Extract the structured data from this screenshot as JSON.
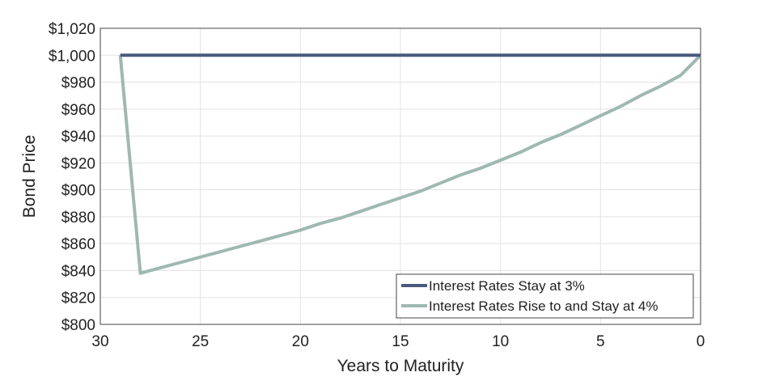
{
  "chart_data": {
    "type": "line",
    "xlabel": "Years to Maturity",
    "ylabel": "Bond Price",
    "xlim": [
      30,
      0
    ],
    "x_reversed": true,
    "ylim": [
      800,
      1020
    ],
    "x_ticks": [
      30,
      25,
      20,
      15,
      10,
      5,
      0
    ],
    "x_tick_labels": [
      "30",
      "25",
      "20",
      "15",
      "10",
      "5",
      "0"
    ],
    "y_ticks": [
      800,
      820,
      840,
      860,
      880,
      900,
      920,
      940,
      960,
      980,
      1000,
      1020
    ],
    "y_tick_labels": [
      "$800",
      "$820",
      "$840",
      "$860",
      "$880",
      "$900",
      "$920",
      "$940",
      "$960",
      "$980",
      "$1,000",
      "$1,020"
    ],
    "grid": true,
    "legend_position": "bottom-right",
    "series": [
      {
        "name": "Interest Rates Stay at 3%",
        "color": "#4a5a7e",
        "x": [
          29,
          0
        ],
        "y": [
          1000,
          1000
        ]
      },
      {
        "name": "Interest Rates Rise to and Stay at 4%",
        "color": "#9fb8b2",
        "x": [
          29,
          28,
          27,
          26,
          25,
          24,
          23,
          22,
          21,
          20,
          19,
          18,
          17,
          16,
          15,
          14,
          13,
          12,
          11,
          10,
          9,
          8,
          7,
          6,
          5,
          4,
          3,
          2,
          1,
          0
        ],
        "y": [
          1000,
          838,
          842,
          846,
          850,
          854,
          858,
          862,
          866,
          870,
          875,
          879,
          884,
          889,
          894,
          899,
          905,
          911,
          916,
          922,
          928,
          935,
          941,
          948,
          955,
          962,
          970,
          977,
          985,
          1000
        ]
      }
    ]
  }
}
